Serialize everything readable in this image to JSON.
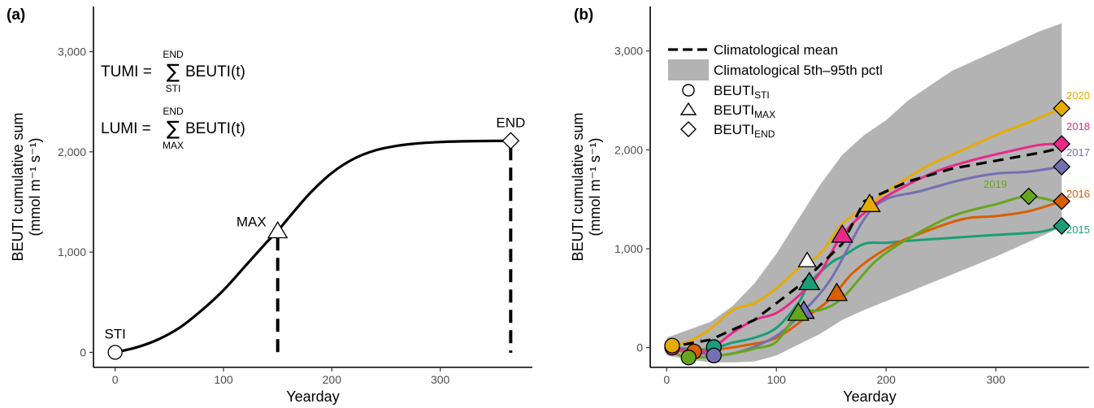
{
  "chart_data": [
    {
      "panel": "(a)",
      "type": "line",
      "xlabel": "Yearday",
      "ylabel": "BEUTI cumulative sum",
      "ylabel_units": "(mmol m⁻¹ s⁻¹)",
      "xlim": [
        -20,
        385
      ],
      "ylim": [
        -150,
        3450
      ],
      "xticks": [
        0,
        100,
        200,
        300
      ],
      "yticks": [
        0,
        1000,
        2000,
        3000
      ],
      "ytick_labels": [
        "0",
        "1,000",
        "2,000",
        "3,000"
      ],
      "curve": {
        "x": [
          0,
          20,
          40,
          60,
          80,
          100,
          120,
          140,
          150,
          160,
          180,
          200,
          220,
          240,
          260,
          280,
          300,
          320,
          340,
          365
        ],
        "y": [
          0,
          50,
          130,
          250,
          420,
          620,
          860,
          1100,
          1210,
          1340,
          1590,
          1790,
          1930,
          2015,
          2060,
          2085,
          2098,
          2105,
          2108,
          2110
        ]
      },
      "markers": [
        {
          "label": "STI",
          "x": 0,
          "y": 0,
          "shape": "circle"
        },
        {
          "label": "MAX",
          "x": 150,
          "y": 1210,
          "shape": "triangle"
        },
        {
          "label": "END",
          "x": 365,
          "y": 2110,
          "shape": "diamond"
        }
      ],
      "equations": {
        "tumi": {
          "lhs": "TUMI =",
          "upper": "END",
          "lower": "STI",
          "sum": "∑",
          "body": "BEUTI(t)"
        },
        "lumi": {
          "lhs": "LUMI =",
          "upper": "END",
          "lower": "MAX",
          "sum": "∑",
          "body": "BEUTI(t)"
        }
      }
    },
    {
      "panel": "(b)",
      "type": "line",
      "xlabel": "Yearday",
      "ylabel": "BEUTI cumulative sum",
      "ylabel_units": "(mmol m⁻¹ s⁻¹)",
      "xlim": [
        -15,
        385
      ],
      "ylim": [
        -200,
        3450
      ],
      "xticks": [
        0,
        100,
        200,
        300
      ],
      "yticks": [
        0,
        1000,
        2000,
        3000
      ],
      "ytick_labels": [
        "0",
        "1,000",
        "2,000",
        "3,000"
      ],
      "legend": {
        "mean": "Climatological mean",
        "band": "Climatological 5th–95th pctl",
        "sti": {
          "base": "BEUTI",
          "sub": "STI"
        },
        "max": {
          "base": "BEUTI",
          "sub": "MAX"
        },
        "end": {
          "base": "BEUTI",
          "sub": "END"
        }
      },
      "band": {
        "x": [
          0,
          20,
          40,
          60,
          80,
          100,
          120,
          140,
          160,
          180,
          200,
          220,
          240,
          260,
          280,
          300,
          320,
          340,
          360
        ],
        "upper": [
          100,
          180,
          260,
          420,
          650,
          950,
          1300,
          1650,
          1950,
          2150,
          2300,
          2500,
          2650,
          2800,
          2900,
          3000,
          3100,
          3200,
          3280
        ],
        "lower": [
          -80,
          -120,
          -150,
          -150,
          -140,
          -80,
          30,
          140,
          280,
          380,
          470,
          560,
          650,
          740,
          830,
          920,
          1020,
          1120,
          1220
        ]
      },
      "mean": {
        "x": [
          0,
          40,
          80,
          120,
          160,
          180,
          220,
          260,
          300,
          340,
          360
        ],
        "y": [
          0,
          80,
          280,
          620,
          1050,
          1480,
          1680,
          1810,
          1890,
          1970,
          2020
        ]
      },
      "series": [
        {
          "name": "2015",
          "color": "#1b9e77",
          "x": [
            5,
            30,
            45,
            60,
            80,
            100,
            120,
            130,
            150,
            160,
            180,
            200,
            220,
            260,
            300,
            340,
            360
          ],
          "y": [
            0,
            -20,
            0,
            50,
            100,
            200,
            450,
            650,
            860,
            920,
            1050,
            1060,
            1080,
            1110,
            1140,
            1170,
            1230
          ],
          "sti": [
            43,
            5
          ],
          "max": [
            130,
            660
          ],
          "end": [
            360,
            1230
          ]
        },
        {
          "name": "2016",
          "color": "#d95f02",
          "x": [
            5,
            25,
            45,
            70,
            100,
            130,
            150,
            170,
            200,
            230,
            270,
            300,
            330,
            360
          ],
          "y": [
            -30,
            -40,
            -20,
            20,
            100,
            330,
            500,
            760,
            1000,
            1150,
            1300,
            1330,
            1380,
            1480
          ],
          "sti": [
            25,
            -40
          ],
          "max": [
            155,
            550
          ],
          "end": [
            360,
            1480
          ]
        },
        {
          "name": "2017",
          "color": "#7570b3",
          "x": [
            5,
            25,
            45,
            70,
            100,
            125,
            150,
            180,
            200,
            230,
            270,
            300,
            330,
            360
          ],
          "y": [
            0,
            -40,
            -80,
            -30,
            120,
            370,
            700,
            1300,
            1500,
            1580,
            1700,
            1760,
            1780,
            1830
          ],
          "sti": [
            43,
            -80
          ],
          "max": [
            125,
            370
          ],
          "end": [
            360,
            1830
          ]
        },
        {
          "name": "2018",
          "color": "#e7298a",
          "x": [
            5,
            25,
            40,
            60,
            80,
            100,
            120,
            140,
            160,
            190,
            220,
            250,
            280,
            310,
            340,
            360
          ],
          "y": [
            0,
            -40,
            -20,
            150,
            280,
            350,
            520,
            760,
            1140,
            1450,
            1650,
            1800,
            1900,
            1980,
            2050,
            2060
          ],
          "sti": [
            5,
            0
          ],
          "max": [
            160,
            1140
          ],
          "end": [
            360,
            2060
          ]
        },
        {
          "name": "2019",
          "color": "#66a61e",
          "x": [
            5,
            20,
            40,
            60,
            80,
            100,
            120,
            140,
            160,
            190,
            220,
            260,
            300,
            330,
            360
          ],
          "y": [
            -50,
            -100,
            -90,
            -60,
            -10,
            60,
            350,
            380,
            500,
            870,
            1100,
            1330,
            1450,
            1530,
            1460
          ],
          "sti": [
            20,
            -100
          ],
          "max": [
            120,
            350
          ],
          "end": [
            330,
            1530
          ]
        },
        {
          "name": "2020",
          "color": "#e6ab02",
          "x": [
            5,
            20,
            40,
            60,
            80,
            100,
            120,
            140,
            160,
            185,
            210,
            240,
            270,
            300,
            330,
            360
          ],
          "y": [
            20,
            60,
            190,
            380,
            450,
            600,
            800,
            950,
            1250,
            1450,
            1650,
            1850,
            2000,
            2150,
            2280,
            2420
          ],
          "sti": [
            5,
            20
          ],
          "max": [
            185,
            1450
          ],
          "end": [
            360,
            2420
          ]
        }
      ],
      "extra_max": {
        "x": 128,
        "y": 880,
        "color": "#ffffff"
      }
    }
  ]
}
